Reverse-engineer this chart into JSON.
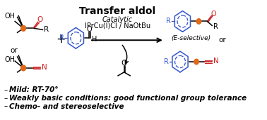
{
  "title": "Transfer aldol",
  "catalytic_text": "Catalytic",
  "catalyst_text": "IPrCu(I)Cl / NaOtBu",
  "e_selective": "(E-selective)",
  "bullet1": "Mild: RT-70°",
  "bullet2": "Weakly basic conditions: good functional group tolerance",
  "bullet3": "Chemo- and stereoselective",
  "bg_color": "#ffffff",
  "black": "#000000",
  "blue": "#3355cc",
  "orange": "#e06818",
  "red": "#cc2222",
  "fig_width": 3.78,
  "fig_height": 1.71,
  "dpi": 100
}
